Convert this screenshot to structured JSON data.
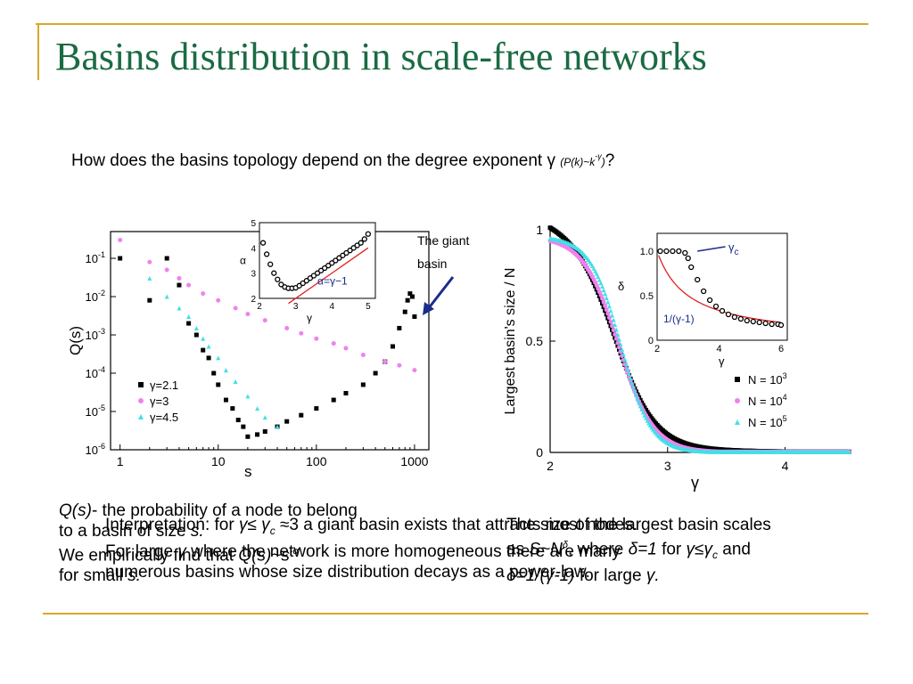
{
  "slide": {
    "title": "Basins distribution in scale-free networks",
    "question_main": "How does the basins topology depend on the degree exponent γ",
    "question_paren_open": "(",
    "question_formula": "P(k)~k",
    "question_exponent": "-γ",
    "question_paren_close": ")",
    "question_mark": "?",
    "annotation_line1": "The giant",
    "annotation_line2": "basin"
  },
  "left_text": {
    "line1_a": "Q(s)",
    "line1_b": "- the probability of a node to belong",
    "line2_a": "to a basin of size ",
    "line2_b": "s.",
    "line3_a": "We empirically find that ",
    "line3_b": "Q(s)~s",
    "line3_c": "-α",
    "line4_a": "for small ",
    "line4_b": "s."
  },
  "overlay_text": {
    "line1_a": "Interpretation: for ",
    "line1_b": "γ≤ γ",
    "line1_c": "c",
    "line1_d": " ≈3 a giant basin exists that attracts most nodes.",
    "line2_a": "For large ",
    "line2_b": "γ",
    "line2_c": " where the network is more homogeneous there are many",
    "line3": "numerous basins whose size distribution decays as a power-law."
  },
  "right_text": {
    "line1": "The size of the largest basin scales",
    "line2_a": "as ",
    "line2_b": "S~N",
    "line2_c": "δ",
    "line2_d": ", where ",
    "line2_e": "δ=1",
    "line2_f": " for ",
    "line2_g": "γ≤γ",
    "line2_h": "c",
    "line2_i": " and",
    "line3_a": "δ=1/(γ-1)",
    "line3_b": " for large ",
    "line3_c": "γ."
  },
  "colors": {
    "title": "#1a6b43",
    "rule": "#d9a82b",
    "black_series": "#000000",
    "magenta_series": "#ee82ee",
    "cyan_series": "#40e0e8",
    "fit_red": "#e02020",
    "arrow_blue": "#1a2c8c"
  },
  "chart_data": [
    {
      "type": "scatter",
      "title": "",
      "xlabel": "s",
      "ylabel": "Q(s)",
      "xscale": "log",
      "yscale": "log",
      "xlim": [
        0.8,
        1400
      ],
      "ylim": [
        1e-06,
        0.5
      ],
      "xticks": [
        "1",
        "10",
        "100",
        "1000"
      ],
      "yticks": [
        "10-1",
        "10-2",
        "10-3",
        "10-4",
        "10-5",
        "10-6"
      ],
      "legend_position": "bottom-left",
      "series": [
        {
          "name": "γ=2.1",
          "marker": "square",
          "color": "#000000",
          "x": [
            1,
            2,
            3,
            4,
            5,
            6,
            7,
            8,
            9,
            10,
            12,
            14,
            16,
            18,
            20,
            25,
            30,
            40,
            50,
            70,
            100,
            150,
            200,
            300,
            400,
            500,
            600,
            700,
            800,
            850,
            900,
            950,
            1000
          ],
          "y": [
            0.1,
            0.008,
            0.1,
            0.02,
            0.002,
            0.001,
            0.0004,
            0.00025,
            0.0001,
            5e-05,
            2e-05,
            1.2e-05,
            6e-06,
            4e-06,
            2.2e-06,
            2.5e-06,
            3e-06,
            4e-06,
            5.5e-06,
            8e-06,
            1.2e-05,
            2e-05,
            3e-05,
            5e-05,
            0.0001,
            0.0002,
            0.0005,
            0.0015,
            0.004,
            0.008,
            0.012,
            0.01,
            0.003
          ]
        },
        {
          "name": "γ=3",
          "marker": "circle",
          "color": "#ee82ee",
          "x": [
            1,
            2,
            3,
            4,
            5,
            7,
            10,
            15,
            20,
            30,
            50,
            70,
            100,
            150,
            200,
            300,
            500,
            700,
            1000
          ],
          "y": [
            0.3,
            0.08,
            0.05,
            0.03,
            0.02,
            0.012,
            0.008,
            0.005,
            0.0035,
            0.0024,
            0.0015,
            0.0011,
            0.0008,
            0.0006,
            0.00045,
            0.0003,
            0.0002,
            0.00016,
            0.00012
          ]
        },
        {
          "name": "γ=4.5",
          "marker": "triangle",
          "color": "#40e0e8",
          "x": [
            1,
            2,
            3,
            4,
            5,
            6,
            7,
            8,
            10,
            12,
            15,
            20,
            25,
            30,
            40
          ],
          "y": [
            0.6,
            0.03,
            0.01,
            0.005,
            0.003,
            0.0015,
            0.0008,
            0.0005,
            0.00025,
            0.00012,
            6e-05,
            2.5e-05,
            1.2e-05,
            7e-06,
            4e-06
          ]
        }
      ],
      "inset": {
        "type": "scatter",
        "xlabel": "γ",
        "ylabel": "α",
        "xlim": [
          2,
          5.2
        ],
        "ylim": [
          2,
          5
        ],
        "xticks": [
          2,
          3,
          4,
          5
        ],
        "yticks": [
          2,
          3,
          4,
          5
        ],
        "fit_label": "α=γ−1",
        "points": {
          "x": [
            2.1,
            2.2,
            2.3,
            2.4,
            2.5,
            2.6,
            2.7,
            2.8,
            2.9,
            3.0,
            3.1,
            3.2,
            3.3,
            3.4,
            3.5,
            3.6,
            3.7,
            3.8,
            3.9,
            4.0,
            4.1,
            4.2,
            4.3,
            4.4,
            4.5,
            4.6,
            4.7,
            4.8,
            4.9,
            5.0
          ],
          "y": [
            4.2,
            3.75,
            3.35,
            3.0,
            2.75,
            2.55,
            2.45,
            2.4,
            2.4,
            2.42,
            2.5,
            2.6,
            2.7,
            2.8,
            2.9,
            3.0,
            3.1,
            3.2,
            3.3,
            3.4,
            3.5,
            3.6,
            3.7,
            3.8,
            3.9,
            4.0,
            4.1,
            4.2,
            4.35,
            4.55
          ]
        }
      }
    },
    {
      "type": "scatter",
      "title": "",
      "xlabel": "γ",
      "ylabel": "Largest basin's size / N",
      "xlim": [
        2,
        4.55
      ],
      "ylim": [
        0,
        1
      ],
      "xticks": [
        2,
        3,
        4
      ],
      "yticks": [
        "0",
        "0.5",
        "1"
      ],
      "legend_position": "bottom-right",
      "series": [
        {
          "name": "N = 10",
          "exponent": "3",
          "marker": "square",
          "color": "#000000"
        },
        {
          "name": "N = 10",
          "exponent": "4",
          "marker": "circle",
          "color": "#ee82ee"
        },
        {
          "name": "N = 10",
          "exponent": "5",
          "marker": "triangle",
          "color": "#40e0e8"
        }
      ],
      "inset": {
        "type": "scatter",
        "xlabel": "γ",
        "ylabel": "δ",
        "xlim": [
          2,
          6.2
        ],
        "ylim": [
          0,
          1.2
        ],
        "xticks": [
          2,
          4,
          6
        ],
        "yticks": [
          "0",
          "0.5",
          "1.0"
        ],
        "label_gamma_c": "γc",
        "label_fit": "1/(γ-1)",
        "points": {
          "x": [
            2.1,
            2.3,
            2.5,
            2.7,
            2.9,
            3.0,
            3.1,
            3.3,
            3.5,
            3.7,
            3.9,
            4.1,
            4.3,
            4.5,
            4.7,
            4.9,
            5.1,
            5.3,
            5.5,
            5.7,
            5.9,
            6.0
          ],
          "y": [
            1.0,
            1.0,
            1.0,
            1.0,
            0.98,
            0.92,
            0.82,
            0.68,
            0.55,
            0.45,
            0.38,
            0.33,
            0.29,
            0.26,
            0.24,
            0.22,
            0.21,
            0.2,
            0.19,
            0.18,
            0.18,
            0.17
          ]
        }
      }
    }
  ]
}
